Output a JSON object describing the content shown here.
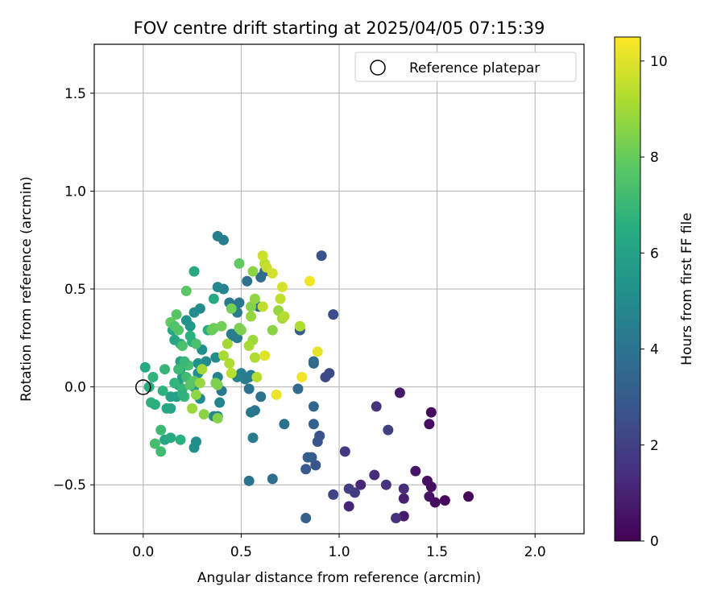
{
  "chart_data": {
    "type": "scatter",
    "title": "FOV centre drift starting at 2025/04/05 07:15:39",
    "xlabel": "Angular distance from reference (arcmin)",
    "ylabel": "Rotation from reference (arcmin)",
    "xlim": [
      -0.25,
      2.25
    ],
    "ylim": [
      -0.75,
      1.75
    ],
    "xticks": [
      0.0,
      0.5,
      1.0,
      1.5,
      2.0
    ],
    "xtick_labels": [
      "0.0",
      "0.5",
      "1.0",
      "1.5",
      "2.0"
    ],
    "yticks": [
      -0.5,
      0.0,
      0.5,
      1.0,
      1.5
    ],
    "ytick_labels": [
      "−0.5",
      "0.0",
      "0.5",
      "1.0",
      "1.5"
    ],
    "grid": true,
    "legend": {
      "placement": "upper right",
      "entries": [
        "Reference platepar"
      ]
    },
    "reference_point": {
      "x": 0.0,
      "y": 0.0
    },
    "colorbar": {
      "label": "Hours from first FF file",
      "min": 0,
      "max": 10.5,
      "colormap": "viridis",
      "ticks": [
        0,
        2,
        4,
        6,
        8,
        10
      ],
      "tick_labels": [
        "0",
        "2",
        "4",
        "6",
        "8",
        "10"
      ]
    },
    "points": [
      [
        1.66,
        -0.56,
        0.1
      ],
      [
        1.54,
        -0.58,
        0.2
      ],
      [
        1.49,
        -0.59,
        0.3
      ],
      [
        1.47,
        -0.51,
        0.35
      ],
      [
        1.45,
        -0.48,
        0.45
      ],
      [
        1.46,
        -0.56,
        0.5
      ],
      [
        1.39,
        -0.43,
        0.6
      ],
      [
        1.47,
        -0.13,
        0.25
      ],
      [
        1.46,
        -0.19,
        0.4
      ],
      [
        1.33,
        -0.66,
        0.8
      ],
      [
        1.33,
        -0.57,
        0.9
      ],
      [
        1.33,
        -0.52,
        1.4
      ],
      [
        1.29,
        -0.67,
        1.5
      ],
      [
        1.24,
        -0.5,
        1.6
      ],
      [
        1.18,
        -0.45,
        1.3
      ],
      [
        1.31,
        -0.03,
        0.7
      ],
      [
        1.19,
        -0.1,
        1.5
      ],
      [
        1.25,
        -0.22,
        2.0
      ],
      [
        1.11,
        -0.5,
        1.2
      ],
      [
        1.08,
        -0.54,
        1.8
      ],
      [
        1.05,
        -0.52,
        1.9
      ],
      [
        1.05,
        -0.61,
        1.1
      ],
      [
        1.03,
        -0.33,
        1.7
      ],
      [
        0.97,
        -0.55,
        2.2
      ],
      [
        0.9,
        -0.25,
        2.6
      ],
      [
        0.89,
        -0.28,
        2.8
      ],
      [
        0.88,
        -0.4,
        2.7
      ],
      [
        0.86,
        -0.36,
        3.0
      ],
      [
        0.84,
        -0.36,
        3.1
      ],
      [
        0.83,
        -0.42,
        2.9
      ],
      [
        0.83,
        -0.67,
        3.2
      ],
      [
        0.87,
        -0.19,
        3.3
      ],
      [
        0.87,
        -0.1,
        3.4
      ],
      [
        0.87,
        0.12,
        3.5
      ],
      [
        0.87,
        0.13,
        3.6
      ],
      [
        0.93,
        0.05,
        2.4
      ],
      [
        0.95,
        0.07,
        2.3
      ],
      [
        0.97,
        0.37,
        2.5
      ],
      [
        0.91,
        0.67,
        2.6
      ],
      [
        0.8,
        0.29,
        3.0
      ],
      [
        0.79,
        -0.01,
        3.7
      ],
      [
        0.72,
        -0.19,
        3.9
      ],
      [
        0.66,
        -0.47,
        3.8
      ],
      [
        0.6,
        -0.05,
        3.9
      ],
      [
        0.57,
        -0.12,
        4.1
      ],
      [
        0.55,
        -0.13,
        4.2
      ],
      [
        0.54,
        -0.48,
        4.0
      ],
      [
        0.56,
        -0.26,
        4.3
      ],
      [
        0.54,
        -0.01,
        4.0
      ],
      [
        0.54,
        0.05,
        4.1
      ],
      [
        0.55,
        0.06,
        4.4
      ],
      [
        0.52,
        0.04,
        4.3
      ],
      [
        0.5,
        0.07,
        4.5
      ],
      [
        0.48,
        0.05,
        4.6
      ],
      [
        0.48,
        0.25,
        4.2
      ],
      [
        0.47,
        0.27,
        4.5
      ],
      [
        0.46,
        0.26,
        4.4
      ],
      [
        0.45,
        0.27,
        4.3
      ],
      [
        0.44,
        0.43,
        4.2
      ],
      [
        0.49,
        0.43,
        4.1
      ],
      [
        0.48,
        0.38,
        4.3
      ],
      [
        0.53,
        0.54,
        3.9
      ],
      [
        0.59,
        0.41,
        3.8
      ],
      [
        0.6,
        0.56,
        3.7
      ],
      [
        0.62,
        0.59,
        3.6
      ],
      [
        0.41,
        0.75,
        4.4
      ],
      [
        0.38,
        0.77,
        4.5
      ],
      [
        0.41,
        0.5,
        4.6
      ],
      [
        0.38,
        0.51,
        4.8
      ],
      [
        0.4,
        -0.02,
        4.2
      ],
      [
        0.38,
        0.05,
        4.6
      ],
      [
        0.39,
        -0.08,
        4.7
      ],
      [
        0.38,
        -0.15,
        4.8
      ],
      [
        0.36,
        -0.15,
        4.9
      ],
      [
        0.37,
        0.15,
        5.0
      ],
      [
        0.32,
        0.13,
        5.1
      ],
      [
        0.3,
        0.19,
        5.2
      ],
      [
        0.28,
        0.12,
        5.3
      ],
      [
        0.28,
        0.07,
        5.2
      ],
      [
        0.29,
        0.4,
        5.0
      ],
      [
        0.26,
        0.38,
        5.1
      ],
      [
        0.24,
        0.31,
        5.5
      ],
      [
        0.22,
        0.34,
        5.4
      ],
      [
        0.29,
        -0.06,
        5.0
      ],
      [
        0.26,
        0.0,
        5.6
      ],
      [
        0.27,
        -0.28,
        5.1
      ],
      [
        0.26,
        -0.31,
        5.2
      ],
      [
        0.2,
        0.05,
        5.7
      ],
      [
        0.19,
        0.09,
        5.8
      ],
      [
        0.17,
        -0.05,
        5.9
      ],
      [
        0.14,
        -0.05,
        6.0
      ],
      [
        0.14,
        -0.11,
        6.1
      ],
      [
        0.12,
        -0.11,
        6.2
      ],
      [
        0.11,
        -0.27,
        6.3
      ],
      [
        0.14,
        -0.26,
        6.4
      ],
      [
        0.18,
        0.01,
        5.9
      ],
      [
        0.19,
        0.13,
        6.0
      ],
      [
        0.21,
        0.12,
        6.2
      ],
      [
        0.16,
        0.24,
        6.1
      ],
      [
        0.15,
        0.29,
        6.3
      ],
      [
        0.19,
        0.22,
        6.4
      ],
      [
        0.26,
        0.59,
        6.3
      ],
      [
        0.36,
        0.45,
        6.4
      ],
      [
        0.33,
        0.29,
        6.5
      ],
      [
        0.25,
        0.23,
        6.5
      ],
      [
        0.24,
        0.26,
        6.6
      ],
      [
        0.22,
        0.49,
        7.8
      ],
      [
        0.17,
        0.37,
        7.7
      ],
      [
        0.14,
        0.33,
        7.9
      ],
      [
        0.16,
        0.31,
        7.5
      ],
      [
        0.18,
        0.29,
        7.6
      ],
      [
        0.2,
        0.21,
        7.4
      ],
      [
        0.23,
        0.11,
        7.3
      ],
      [
        0.22,
        0.05,
        7.2
      ],
      [
        0.21,
        0.13,
        7.0
      ],
      [
        0.18,
        0.09,
        7.1
      ],
      [
        0.16,
        0.02,
        6.8
      ],
      [
        0.2,
        -0.01,
        6.9
      ],
      [
        0.21,
        -0.05,
        7.0
      ],
      [
        0.2,
        -0.04,
        6.7
      ],
      [
        0.19,
        -0.27,
        6.6
      ],
      [
        0.1,
        -0.02,
        6.7
      ],
      [
        0.11,
        0.09,
        6.9
      ],
      [
        0.05,
        0.05,
        6.8
      ],
      [
        0.04,
        -0.08,
        6.7
      ],
      [
        0.06,
        -0.09,
        6.6
      ],
      [
        0.03,
        0.0,
        6.5
      ],
      [
        0.01,
        0.1,
        6.4
      ],
      [
        0.09,
        -0.22,
        7.1
      ],
      [
        0.06,
        -0.29,
        7.3
      ],
      [
        0.09,
        -0.33,
        7.2
      ],
      [
        0.26,
        0.03,
        7.8
      ],
      [
        0.24,
        0.01,
        7.7
      ],
      [
        0.27,
        0.22,
        7.4
      ],
      [
        0.35,
        0.29,
        8.0
      ],
      [
        0.36,
        0.3,
        8.1
      ],
      [
        0.4,
        0.31,
        8.2
      ],
      [
        0.37,
        0.02,
        8.3
      ],
      [
        0.38,
        0.01,
        8.4
      ],
      [
        0.38,
        -0.16,
        8.5
      ],
      [
        0.31,
        -0.14,
        8.6
      ],
      [
        0.27,
        -0.04,
        8.7
      ],
      [
        0.29,
        0.02,
        8.8
      ],
      [
        0.25,
        -0.11,
        8.9
      ],
      [
        0.3,
        0.09,
        9.0
      ],
      [
        0.41,
        0.16,
        9.1
      ],
      [
        0.43,
        0.22,
        9.0
      ],
      [
        0.44,
        0.12,
        9.2
      ],
      [
        0.45,
        0.07,
        9.4
      ],
      [
        0.45,
        0.4,
        8.2
      ],
      [
        0.49,
        0.63,
        7.9
      ],
      [
        0.49,
        0.3,
        8.3
      ],
      [
        0.5,
        0.29,
        8.4
      ],
      [
        0.55,
        0.41,
        8.5
      ],
      [
        0.56,
        0.59,
        8.6
      ],
      [
        0.57,
        0.45,
        8.7
      ],
      [
        0.55,
        0.36,
        8.8
      ],
      [
        0.56,
        0.24,
        8.9
      ],
      [
        0.54,
        0.21,
        9.1
      ],
      [
        0.57,
        0.15,
        9.2
      ],
      [
        0.58,
        0.05,
        9.3
      ],
      [
        0.61,
        0.41,
        9.5
      ],
      [
        0.62,
        0.63,
        9.4
      ],
      [
        0.63,
        0.61,
        9.6
      ],
      [
        0.61,
        0.67,
        9.7
      ],
      [
        0.66,
        0.58,
        9.8
      ],
      [
        0.66,
        0.29,
        8.6
      ],
      [
        0.69,
        0.39,
        8.8
      ],
      [
        0.71,
        0.35,
        9.0
      ],
      [
        0.72,
        0.36,
        9.3
      ],
      [
        0.7,
        0.45,
        9.5
      ],
      [
        0.71,
        0.51,
        9.8
      ],
      [
        0.62,
        0.16,
        10.0
      ],
      [
        0.68,
        -0.04,
        10.2
      ],
      [
        0.8,
        0.31,
        9.2
      ],
      [
        0.81,
        0.05,
        10.3
      ],
      [
        0.85,
        0.54,
        10.3
      ],
      [
        0.89,
        0.18,
        10.1
      ]
    ]
  }
}
